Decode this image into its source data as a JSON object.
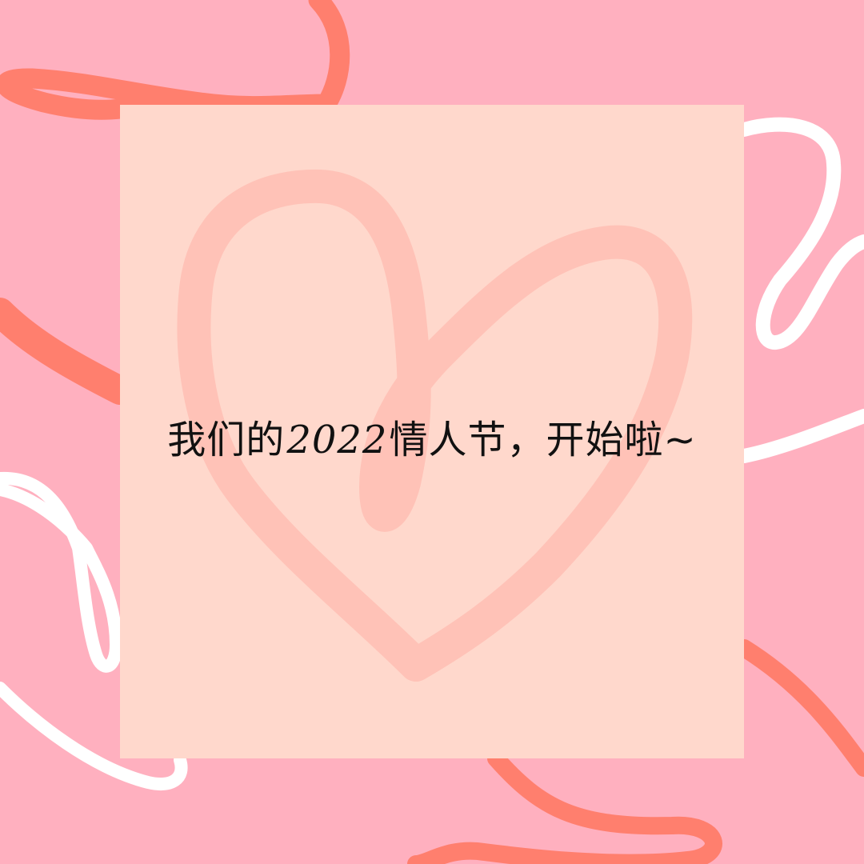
{
  "card": {
    "title": {
      "before_year": "我们的",
      "year": "2022",
      "after_year": "情人节，开始啦~"
    }
  },
  "colors": {
    "background": "#ffb0bf",
    "card": "#ffd8cc",
    "heart_stroke": "#ffc2b7",
    "coral_ribbon": "#ff7f6e",
    "white_ribbon": "#ffffff",
    "text": "#111111"
  },
  "decorations": {
    "background_icons": [
      "coral-ribbon-icon",
      "white-ribbon-icon"
    ],
    "card_icon": "heart-outline-icon"
  }
}
